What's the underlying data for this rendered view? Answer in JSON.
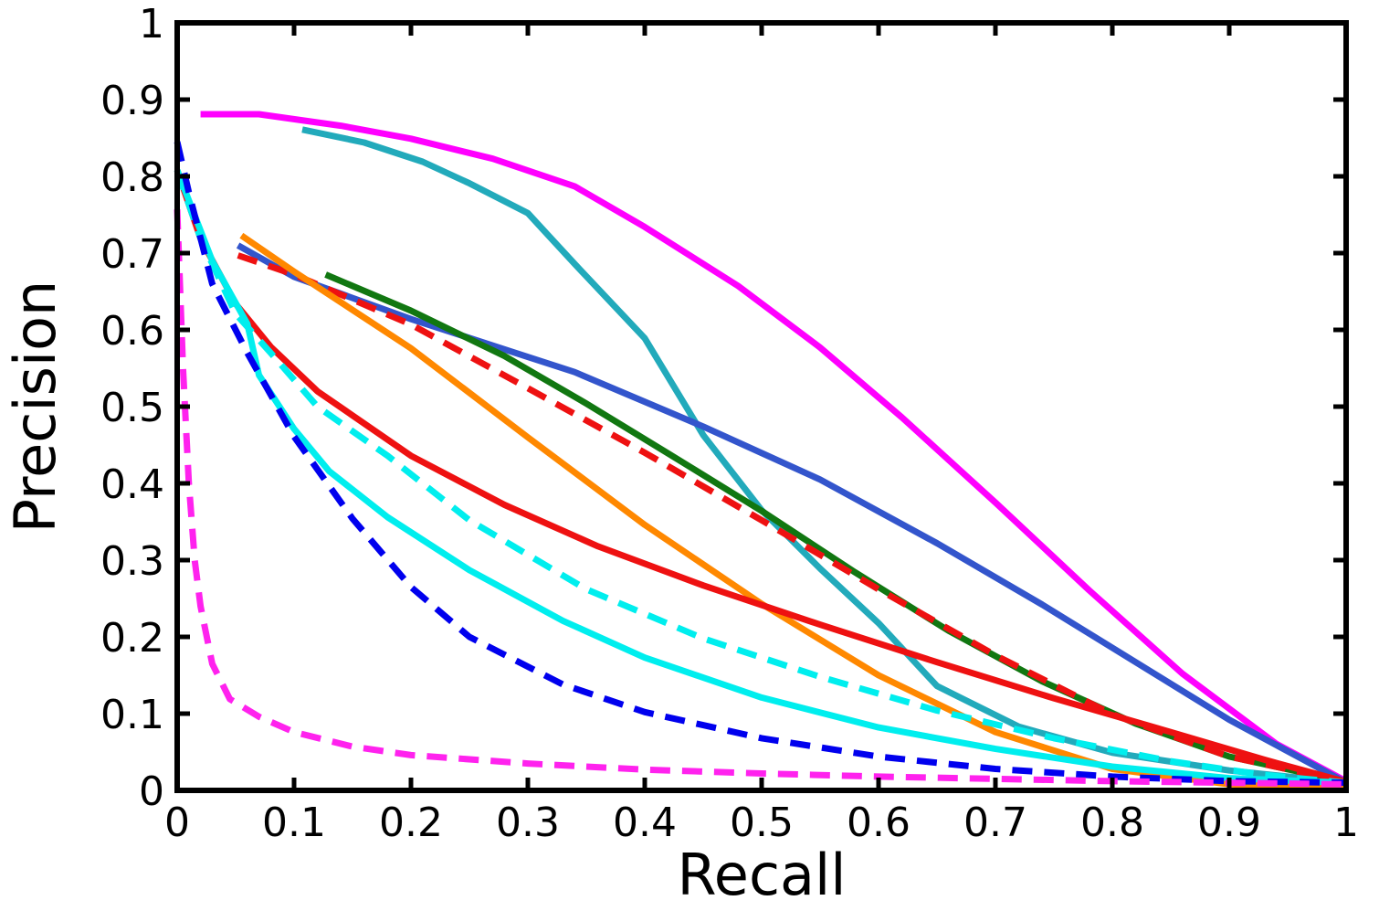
{
  "chart_data": {
    "type": "line",
    "title": "",
    "xlabel": "Recall",
    "ylabel": "Precision",
    "xlim": [
      0,
      1
    ],
    "ylim": [
      0,
      1
    ],
    "grid": false,
    "legend": "none",
    "x_ticks": [
      "0",
      "0.1",
      "0.2",
      "0.3",
      "0.4",
      "0.5",
      "0.6",
      "0.7",
      "0.8",
      "0.9",
      "1"
    ],
    "y_ticks": [
      "0",
      "0.1",
      "0.2",
      "0.3",
      "0.4",
      "0.5",
      "0.6",
      "0.7",
      "0.8",
      "0.9",
      "1"
    ],
    "series": [
      {
        "color": "#ff00ff",
        "style": "solid",
        "x": [
          0.02,
          0.07,
          0.14,
          0.2,
          0.27,
          0.34,
          0.4,
          0.48,
          0.55,
          0.62,
          0.7,
          0.78,
          0.86,
          0.94,
          1.0
        ],
        "y": [
          0.881,
          0.881,
          0.866,
          0.849,
          0.823,
          0.787,
          0.734,
          0.657,
          0.577,
          0.486,
          0.375,
          0.261,
          0.152,
          0.061,
          0.012
        ]
      },
      {
        "color": "#22aabb",
        "style": "solid",
        "x": [
          0.107,
          0.16,
          0.21,
          0.25,
          0.3,
          0.34,
          0.4,
          0.45,
          0.5,
          0.55,
          0.6,
          0.65,
          0.72,
          0.8,
          0.9,
          1.0
        ],
        "y": [
          0.861,
          0.844,
          0.819,
          0.791,
          0.752,
          0.686,
          0.589,
          0.463,
          0.365,
          0.289,
          0.218,
          0.136,
          0.083,
          0.049,
          0.026,
          0.01
        ]
      },
      {
        "color": "#3355cc",
        "style": "solid",
        "x": [
          0.052,
          0.1,
          0.2,
          0.34,
          0.45,
          0.55,
          0.65,
          0.74,
          0.82,
          0.9,
          1.0
        ],
        "y": [
          0.71,
          0.669,
          0.614,
          0.545,
          0.474,
          0.405,
          0.322,
          0.242,
          0.167,
          0.092,
          0.01
        ]
      },
      {
        "color": "#117711",
        "style": "solid",
        "x": [
          0.127,
          0.2,
          0.28,
          0.35,
          0.42,
          0.5,
          0.58,
          0.66,
          0.74,
          0.82,
          0.9,
          1.0
        ],
        "y": [
          0.672,
          0.625,
          0.566,
          0.504,
          0.439,
          0.364,
          0.284,
          0.208,
          0.142,
          0.087,
          0.044,
          0.011
        ]
      },
      {
        "color": "#ee1111",
        "style": "dashed",
        "x": [
          0.052,
          0.1,
          0.2,
          0.3,
          0.4,
          0.5,
          0.6,
          0.7,
          0.8,
          0.9,
          1.0
        ],
        "y": [
          0.697,
          0.672,
          0.607,
          0.524,
          0.44,
          0.352,
          0.262,
          0.176,
          0.099,
          0.044,
          0.011
        ]
      },
      {
        "color": "#ff8800",
        "style": "solid",
        "x": [
          0.055,
          0.1,
          0.2,
          0.3,
          0.4,
          0.5,
          0.6,
          0.7,
          0.8,
          0.9,
          1.0
        ],
        "y": [
          0.723,
          0.676,
          0.576,
          0.46,
          0.346,
          0.243,
          0.15,
          0.076,
          0.028,
          0.008,
          0.003
        ]
      },
      {
        "color": "#ee1111",
        "style": "solid",
        "x": [
          0.0,
          0.02,
          0.05,
          0.08,
          0.12,
          0.2,
          0.28,
          0.36,
          0.45,
          0.55,
          0.65,
          0.75,
          0.85,
          0.93,
          1.0
        ],
        "y": [
          0.808,
          0.719,
          0.634,
          0.578,
          0.52,
          0.436,
          0.372,
          0.318,
          0.267,
          0.216,
          0.167,
          0.12,
          0.076,
          0.04,
          0.011
        ]
      },
      {
        "color": "#00eeee",
        "style": "dashed",
        "x": [
          0.0,
          0.02,
          0.05,
          0.08,
          0.12,
          0.18,
          0.25,
          0.35,
          0.45,
          0.55,
          0.65,
          0.75,
          0.85,
          0.93,
          1.0
        ],
        "y": [
          0.808,
          0.719,
          0.621,
          0.57,
          0.5,
          0.436,
          0.352,
          0.262,
          0.198,
          0.148,
          0.104,
          0.068,
          0.038,
          0.02,
          0.01
        ]
      },
      {
        "color": "#00eeee",
        "style": "solid",
        "x": [
          0.0,
          0.03,
          0.06,
          0.07,
          0.1,
          0.13,
          0.18,
          0.25,
          0.33,
          0.4,
          0.5,
          0.6,
          0.7,
          0.8,
          0.9,
          1.0
        ],
        "y": [
          0.808,
          0.69,
          0.608,
          0.541,
          0.471,
          0.416,
          0.356,
          0.287,
          0.221,
          0.173,
          0.121,
          0.082,
          0.054,
          0.031,
          0.016,
          0.01
        ]
      },
      {
        "color": "#0000ee",
        "style": "dashed",
        "x": [
          0.0,
          0.01,
          0.03,
          0.06,
          0.1,
          0.15,
          0.2,
          0.25,
          0.33,
          0.4,
          0.5,
          0.6,
          0.7,
          0.8,
          0.9,
          1.0
        ],
        "y": [
          0.845,
          0.779,
          0.66,
          0.57,
          0.461,
          0.354,
          0.265,
          0.2,
          0.138,
          0.102,
          0.068,
          0.044,
          0.028,
          0.018,
          0.012,
          0.01
        ]
      },
      {
        "color": "#ff22ee",
        "style": "dashed",
        "x": [
          0.0,
          0.005,
          0.01,
          0.015,
          0.02,
          0.03,
          0.045,
          0.07,
          0.1,
          0.15,
          0.2,
          0.3,
          0.4,
          0.5,
          0.6,
          0.7,
          0.8,
          0.9,
          1.0
        ],
        "y": [
          0.757,
          0.55,
          0.4,
          0.3,
          0.24,
          0.165,
          0.119,
          0.096,
          0.076,
          0.057,
          0.046,
          0.035,
          0.027,
          0.022,
          0.018,
          0.015,
          0.012,
          0.01,
          0.008
        ]
      }
    ]
  }
}
